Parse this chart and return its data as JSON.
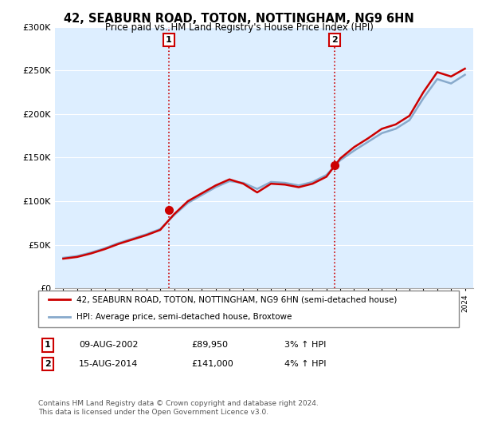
{
  "title": "42, SEABURN ROAD, TOTON, NOTTINGHAM, NG9 6HN",
  "subtitle": "Price paid vs. HM Land Registry's House Price Index (HPI)",
  "legend_line1": "42, SEABURN ROAD, TOTON, NOTTINGHAM, NG9 6HN (semi-detached house)",
  "legend_line2": "HPI: Average price, semi-detached house, Broxtowe",
  "footer": "Contains HM Land Registry data © Crown copyright and database right 2024.\nThis data is licensed under the Open Government Licence v3.0.",
  "annotation1_label": "1",
  "annotation1_date": "09-AUG-2002",
  "annotation1_price": "£89,950",
  "annotation1_hpi": "3% ↑ HPI",
  "annotation2_label": "2",
  "annotation2_date": "15-AUG-2014",
  "annotation2_price": "£141,000",
  "annotation2_hpi": "4% ↑ HPI",
  "line_color_price": "#cc0000",
  "line_color_hpi": "#88aacc",
  "background_plot": "#ddeeff",
  "background_fig": "#ffffff",
  "vline_color": "#cc0000",
  "ylim": [
    0,
    300000
  ],
  "yticks": [
    0,
    50000,
    100000,
    150000,
    200000,
    250000,
    300000
  ],
  "ytick_labels": [
    "£0",
    "£50K",
    "£100K",
    "£150K",
    "£200K",
    "£250K",
    "£300K"
  ],
  "sale1_year": 2002.6,
  "sale1_price": 89950,
  "sale2_year": 2014.6,
  "sale2_price": 141000,
  "hpi_years": [
    1995,
    1996,
    1997,
    1998,
    1999,
    2000,
    2001,
    2002,
    2003,
    2004,
    2005,
    2006,
    2007,
    2008,
    2009,
    2010,
    2011,
    2012,
    2013,
    2014,
    2015,
    2016,
    2017,
    2018,
    2019,
    2020,
    2021,
    2022,
    2023,
    2024
  ],
  "hpi_values": [
    35000,
    37000,
    41000,
    46000,
    52000,
    57000,
    62000,
    68000,
    84000,
    98000,
    107000,
    116000,
    123000,
    121000,
    114000,
    122000,
    121000,
    118000,
    122000,
    130000,
    147000,
    158000,
    168000,
    178000,
    183000,
    193000,
    218000,
    240000,
    235000,
    245000
  ],
  "price_years": [
    1995,
    1996,
    1997,
    1998,
    1999,
    2000,
    2001,
    2002,
    2003,
    2004,
    2005,
    2006,
    2007,
    2008,
    2009,
    2010,
    2011,
    2012,
    2013,
    2014,
    2015,
    2016,
    2017,
    2018,
    2019,
    2020,
    2021,
    2022,
    2023,
    2024
  ],
  "price_values": [
    34000,
    36000,
    40000,
    45000,
    51000,
    56000,
    61000,
    67000,
    85000,
    100000,
    109000,
    118000,
    125000,
    120000,
    110000,
    120000,
    119000,
    116000,
    120000,
    128000,
    149000,
    162000,
    172000,
    183000,
    188000,
    198000,
    225000,
    248000,
    243000,
    252000
  ]
}
